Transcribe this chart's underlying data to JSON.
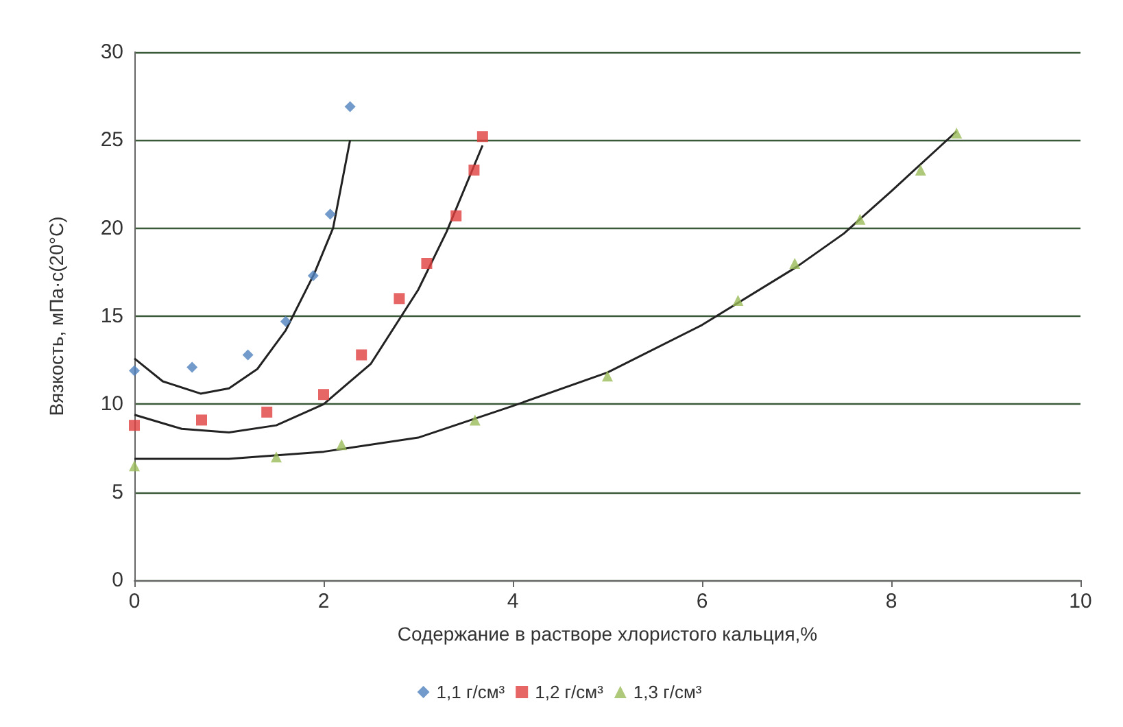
{
  "chart_data": {
    "type": "scatter",
    "xlabel": "Содержание в растворе хлористого кальция,%",
    "ylabel": "Вязкость, мПа·с(20°C)",
    "xlim": [
      0,
      10
    ],
    "xticks": [
      0,
      2,
      4,
      6,
      8,
      10
    ],
    "ylim": [
      0,
      30
    ],
    "yticks": [
      0,
      5,
      10,
      15,
      20,
      25,
      30
    ],
    "grid": "y",
    "legend": "bottom",
    "series": [
      {
        "name": "1,1 г/см³",
        "color": "#4f81bd",
        "marker": "diamond",
        "x": [
          0,
          0.61,
          1.2,
          1.6,
          1.89,
          2.07,
          2.28
        ],
        "values": [
          11.9,
          12.1,
          12.8,
          14.7,
          17.3,
          20.8,
          26.9
        ]
      },
      {
        "name": "1,2 г/см³",
        "color": "#e04040",
        "marker": "square",
        "x": [
          0,
          0.71,
          1.4,
          2.0,
          2.4,
          2.8,
          3.09,
          3.4,
          3.59,
          3.68
        ],
        "values": [
          8.8,
          9.1,
          9.55,
          10.55,
          12.8,
          16.0,
          18.0,
          20.7,
          23.3,
          25.2
        ]
      },
      {
        "name": "1,3 г/см³",
        "color": "#9bbb59",
        "marker": "triangle",
        "x": [
          0,
          1.5,
          2.19,
          3.6,
          5.0,
          6.38,
          6.98,
          7.67,
          8.31,
          8.69
        ],
        "values": [
          6.5,
          7.0,
          7.7,
          9.1,
          11.6,
          15.9,
          18.0,
          20.5,
          23.3,
          25.4
        ]
      },
      {
        "type": "line",
        "color": "#222222",
        "marker": "none",
        "x": [
          0,
          0.3,
          0.7,
          1.0,
          1.3,
          1.6,
          1.9,
          2.1,
          2.28
        ],
        "values": [
          12.6,
          11.3,
          10.6,
          10.9,
          12.0,
          14.2,
          17.4,
          20.0,
          25.0
        ]
      },
      {
        "type": "line",
        "color": "#222222",
        "marker": "none",
        "x": [
          0,
          0.5,
          1.0,
          1.5,
          2.0,
          2.5,
          3.0,
          3.3,
          3.68
        ],
        "values": [
          9.4,
          8.6,
          8.4,
          8.8,
          10.0,
          12.3,
          16.5,
          19.8,
          24.7
        ]
      },
      {
        "type": "line",
        "color": "#222222",
        "marker": "none",
        "x": [
          0,
          1,
          2,
          3,
          4,
          5,
          6,
          7,
          7.5,
          8,
          8.69
        ],
        "values": [
          6.9,
          6.9,
          7.3,
          8.1,
          9.9,
          11.8,
          14.5,
          17.8,
          19.7,
          22.1,
          25.5
        ]
      }
    ]
  }
}
